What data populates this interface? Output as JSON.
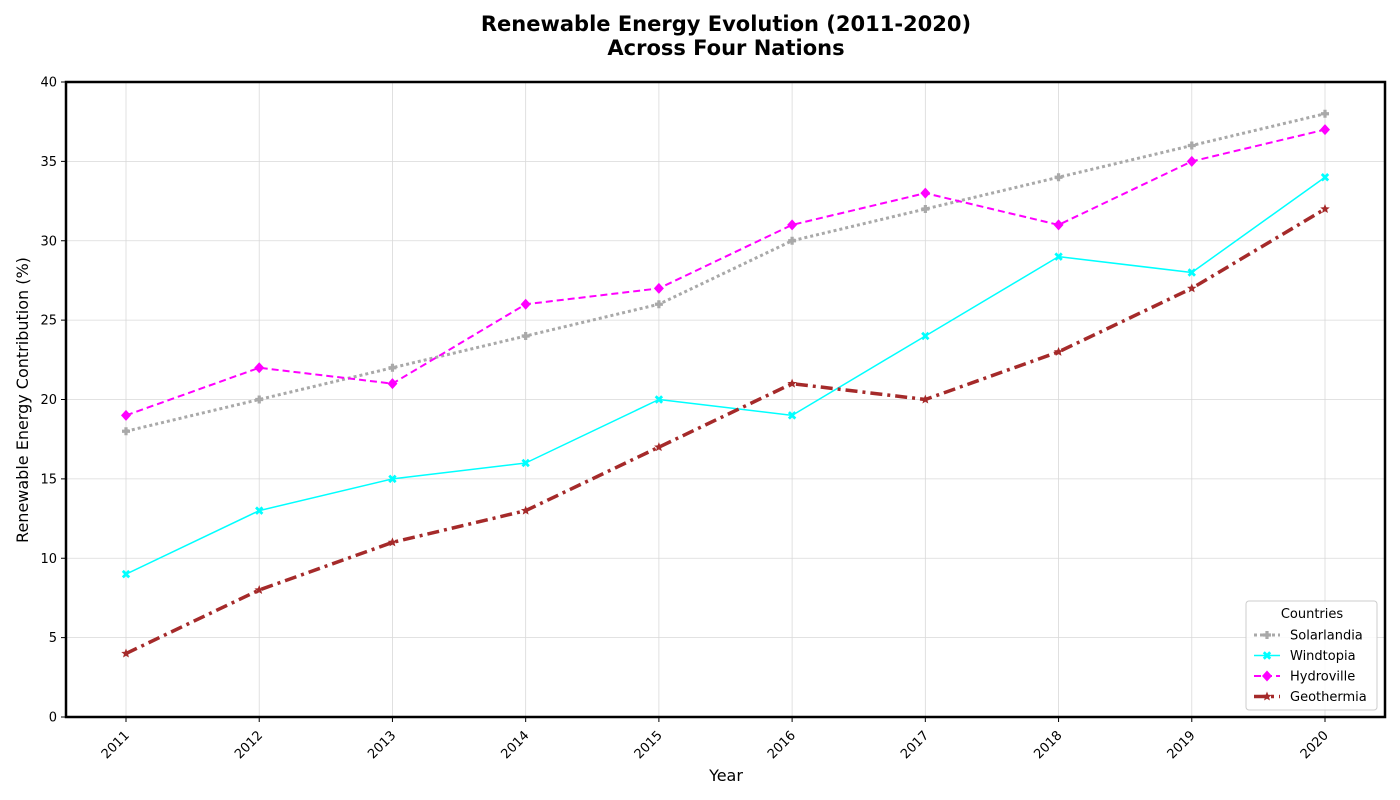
{
  "chart_data": {
    "type": "line",
    "title_line1": "Renewable Energy Evolution (2011-2020)",
    "title_line2": "Across Four Nations",
    "xlabel": "Year",
    "ylabel": "Renewable Energy Contribution (%)",
    "categories": [
      "2011",
      "2012",
      "2013",
      "2014",
      "2015",
      "2016",
      "2017",
      "2018",
      "2019",
      "2020"
    ],
    "ylim": [
      0,
      40
    ],
    "yticks": [
      "0",
      "5",
      "10",
      "15",
      "20",
      "25",
      "30",
      "35",
      "40"
    ],
    "grid": true,
    "legend": {
      "title": "Countries",
      "placement": "lower-right"
    },
    "series": [
      {
        "name": "Solarlandia",
        "color": "#a9a9a9",
        "line_style": "dotted",
        "marker": "plus",
        "values": [
          18,
          20,
          22,
          24,
          26,
          30,
          32,
          34,
          36,
          38
        ]
      },
      {
        "name": "Windtopia",
        "color": "#00ffff",
        "line_style": "solid",
        "marker": "x",
        "values": [
          9,
          13,
          15,
          16,
          20,
          19,
          24,
          29,
          28,
          34
        ]
      },
      {
        "name": "Hydroville",
        "color": "#ff00ff",
        "line_style": "dashed",
        "marker": "diamond",
        "values": [
          19,
          22,
          21,
          26,
          27,
          31,
          33,
          31,
          35,
          37
        ]
      },
      {
        "name": "Geothermia",
        "color": "#a52a2a",
        "line_style": "dashdot",
        "marker": "star",
        "values": [
          4,
          8,
          11,
          13,
          17,
          21,
          20,
          23,
          27,
          32
        ]
      }
    ]
  }
}
